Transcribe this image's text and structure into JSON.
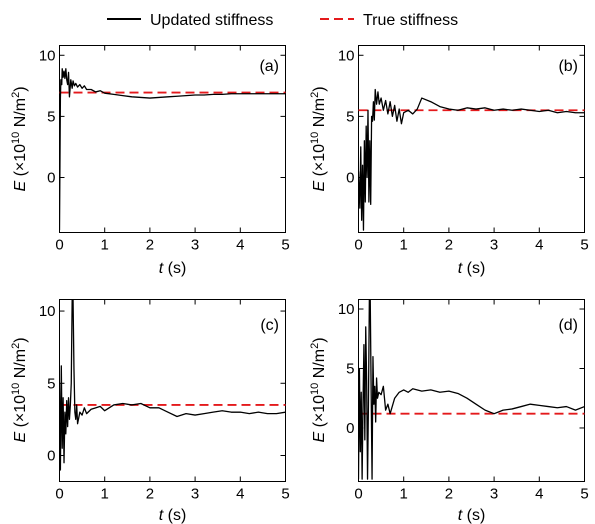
{
  "legend": {
    "items": [
      {
        "label": "Updated stiffness",
        "color": "#000000",
        "dash": "solid"
      },
      {
        "label": "True stiffness",
        "color": "#e41a1c",
        "dash": "dashed"
      }
    ],
    "placement": "top-center"
  },
  "chart_data": [
    {
      "type": "line",
      "panel_label": "(a)",
      "xlabel_var": "t",
      "xlabel_unit": " (s)",
      "ylabel_var": "E",
      "ylabel_unit": " (×10",
      "ylabel_exp": "10",
      "ylabel_unit2": " N/m",
      "ylabel_sq": "2",
      "ylabel_close": ")",
      "xlim": [
        0,
        5
      ],
      "ylim": [
        -4.5,
        10.8
      ],
      "xticks": [
        0,
        1,
        2,
        3,
        4,
        5
      ],
      "yticks": [
        0,
        5,
        10
      ],
      "true_value": 6.95,
      "series": [
        {
          "name": "Updated stiffness",
          "x": [
            0,
            0.02,
            0.03,
            0.05,
            0.06,
            0.08,
            0.1,
            0.12,
            0.14,
            0.16,
            0.18,
            0.2,
            0.22,
            0.25,
            0.28,
            0.3,
            0.33,
            0.36,
            0.4,
            0.45,
            0.5,
            0.55,
            0.6,
            0.7,
            0.8,
            0.9,
            1.0,
            1.2,
            1.4,
            1.6,
            1.8,
            2.0,
            2.2,
            2.4,
            2.6,
            2.8,
            3.0,
            3.2,
            3.4,
            3.6,
            3.8,
            4.0,
            4.2,
            4.4,
            4.6,
            4.8,
            5.0
          ],
          "y": [
            -4.3,
            6.5,
            8.0,
            7.6,
            8.9,
            8.2,
            8.7,
            8.1,
            8.9,
            8.0,
            7.6,
            8.6,
            6.6,
            8.0,
            7.3,
            7.9,
            7.5,
            7.7,
            7.4,
            7.6,
            7.3,
            7.5,
            7.2,
            7.2,
            7.0,
            7.1,
            6.9,
            6.8,
            6.7,
            6.6,
            6.55,
            6.5,
            6.55,
            6.6,
            6.65,
            6.7,
            6.75,
            6.75,
            6.8,
            6.8,
            6.85,
            6.85,
            6.85,
            6.85,
            6.85,
            6.85,
            6.85
          ]
        }
      ]
    },
    {
      "type": "line",
      "panel_label": "(b)",
      "xlabel_var": "t",
      "xlabel_unit": " (s)",
      "ylabel_var": "E",
      "ylabel_unit": " (×10",
      "ylabel_exp": "10",
      "ylabel_unit2": " N/m",
      "ylabel_sq": "2",
      "ylabel_close": ")",
      "xlim": [
        0,
        5
      ],
      "ylim": [
        -4.5,
        10.8
      ],
      "xticks": [
        0,
        1,
        2,
        3,
        4,
        5
      ],
      "yticks": [
        0,
        5,
        10
      ],
      "true_value": 5.5,
      "series": [
        {
          "name": "Updated stiffness",
          "x": [
            0,
            0.03,
            0.05,
            0.07,
            0.09,
            0.11,
            0.13,
            0.15,
            0.17,
            0.19,
            0.21,
            0.23,
            0.25,
            0.27,
            0.29,
            0.31,
            0.33,
            0.35,
            0.37,
            0.4,
            0.43,
            0.46,
            0.5,
            0.55,
            0.6,
            0.65,
            0.7,
            0.75,
            0.8,
            0.85,
            0.9,
            0.95,
            1.0,
            1.1,
            1.2,
            1.3,
            1.4,
            1.6,
            1.8,
            2.0,
            2.2,
            2.4,
            2.6,
            2.8,
            3.0,
            3.2,
            3.4,
            3.6,
            3.8,
            4.0,
            4.2,
            4.4,
            4.6,
            4.8,
            5.0
          ],
          "y": [
            0.5,
            -2.5,
            2.5,
            -3.5,
            1.0,
            -4.3,
            3.0,
            -2.0,
            4.2,
            0.0,
            5.5,
            -2.0,
            3.0,
            -2.2,
            5.0,
            4.6,
            6.2,
            4.7,
            7.2,
            6.0,
            7.0,
            6.0,
            6.5,
            5.5,
            6.3,
            5.2,
            6.2,
            5.0,
            5.9,
            4.6,
            5.6,
            4.4,
            5.3,
            5.5,
            5.2,
            5.6,
            6.5,
            6.2,
            5.8,
            5.6,
            5.5,
            5.7,
            5.6,
            5.7,
            5.5,
            5.6,
            5.5,
            5.6,
            5.5,
            5.4,
            5.5,
            5.3,
            5.4,
            5.3,
            5.3
          ]
        }
      ]
    },
    {
      "type": "line",
      "panel_label": "(c)",
      "xlabel_var": "t",
      "xlabel_unit": " (s)",
      "ylabel_var": "E",
      "ylabel_unit": " (×10",
      "ylabel_exp": "10",
      "ylabel_unit2": " N/m",
      "ylabel_sq": "2",
      "ylabel_close": ")",
      "xlim": [
        0,
        5
      ],
      "ylim": [
        -1.8,
        10.8
      ],
      "xticks": [
        0,
        1,
        2,
        3,
        4,
        5
      ],
      "yticks": [
        0,
        5,
        10
      ],
      "true_value": 3.5,
      "series": [
        {
          "name": "Updated stiffness",
          "x": [
            0,
            0.02,
            0.04,
            0.06,
            0.08,
            0.1,
            0.12,
            0.14,
            0.16,
            0.18,
            0.2,
            0.22,
            0.24,
            0.26,
            0.28,
            0.3,
            0.32,
            0.34,
            0.36,
            0.38,
            0.4,
            0.45,
            0.5,
            0.55,
            0.6,
            0.7,
            0.8,
            0.9,
            1.0,
            1.1,
            1.2,
            1.4,
            1.6,
            1.8,
            2.0,
            2.2,
            2.4,
            2.6,
            2.8,
            3.0,
            3.2,
            3.4,
            3.6,
            3.8,
            4.0,
            4.2,
            4.4,
            4.6,
            4.8,
            5.0
          ],
          "y": [
            5.0,
            -1.0,
            6.2,
            0.5,
            4.0,
            -0.5,
            3.0,
            1.5,
            3.8,
            2.0,
            4.0,
            2.5,
            3.5,
            5.0,
            10.8,
            10.8,
            6.0,
            3.0,
            2.5,
            3.5,
            2.2,
            3.0,
            2.8,
            3.3,
            2.9,
            3.2,
            3.3,
            3.4,
            3.1,
            3.3,
            3.5,
            3.6,
            3.5,
            3.6,
            3.3,
            3.3,
            3.0,
            2.7,
            2.9,
            2.8,
            2.9,
            3.0,
            3.1,
            3.0,
            3.0,
            2.9,
            3.0,
            2.9,
            2.9,
            3.0
          ]
        }
      ]
    },
    {
      "type": "line",
      "panel_label": "(d)",
      "xlabel_var": "t",
      "xlabel_unit": " (s)",
      "ylabel_var": "E",
      "ylabel_unit": " (×10",
      "ylabel_exp": "10",
      "ylabel_unit2": " N/m",
      "ylabel_sq": "2",
      "ylabel_close": ")",
      "xlim": [
        0,
        5
      ],
      "ylim": [
        -4.5,
        10.8
      ],
      "xticks": [
        0,
        1,
        2,
        3,
        4,
        5
      ],
      "yticks": [
        0,
        5,
        10
      ],
      "true_value": 1.2,
      "series": [
        {
          "name": "Updated stiffness",
          "x": [
            0,
            0.02,
            0.04,
            0.06,
            0.08,
            0.1,
            0.12,
            0.14,
            0.16,
            0.18,
            0.2,
            0.22,
            0.24,
            0.26,
            0.28,
            0.3,
            0.32,
            0.34,
            0.36,
            0.38,
            0.4,
            0.42,
            0.45,
            0.5,
            0.55,
            0.6,
            0.65,
            0.7,
            0.8,
            0.9,
            1.0,
            1.1,
            1.2,
            1.4,
            1.6,
            1.8,
            2.0,
            2.2,
            2.4,
            2.6,
            2.8,
            3.0,
            3.2,
            3.4,
            3.6,
            3.8,
            4.0,
            4.2,
            4.4,
            4.6,
            4.8,
            5.0
          ],
          "y": [
            -4.3,
            5.0,
            -2.0,
            3.0,
            -4.3,
            2.0,
            7.0,
            -1.0,
            8.5,
            4.0,
            -4.3,
            2.0,
            10.8,
            10.8,
            3.0,
            -4.3,
            6.0,
            2.0,
            3.5,
            0.5,
            4.2,
            2.5,
            3.0,
            2.8,
            3.5,
            1.5,
            2.0,
            1.2,
            2.5,
            3.0,
            3.2,
            3.0,
            3.3,
            3.1,
            3.2,
            3.0,
            3.1,
            2.9,
            2.5,
            2.0,
            1.5,
            1.2,
            1.5,
            1.6,
            1.8,
            2.0,
            1.9,
            1.8,
            1.7,
            1.8,
            1.5,
            1.8
          ]
        }
      ]
    }
  ]
}
